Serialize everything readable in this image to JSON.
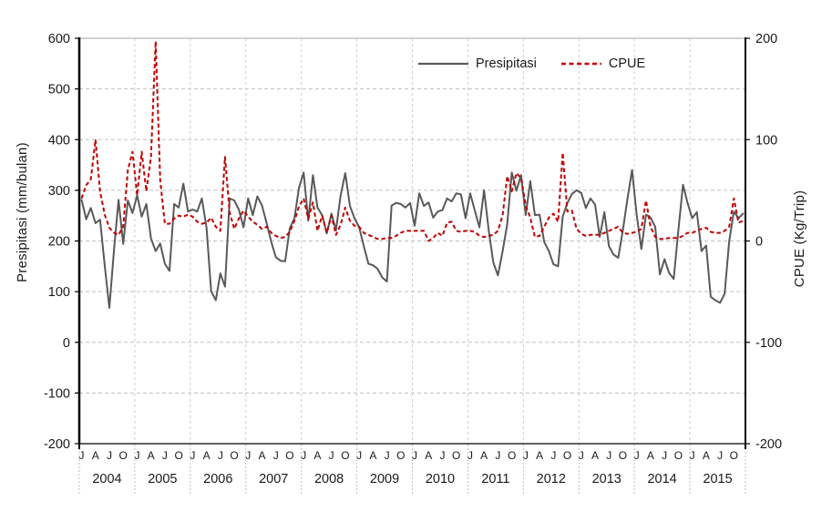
{
  "background": "#ffffff",
  "legend": {
    "presipitasi_label": "Presipitasi",
    "cpue_label": "CPUE"
  },
  "chart_data": {
    "type": "line",
    "title": "",
    "left_axis": {
      "title": "Presipitasi (mm/bulan)",
      "min": -200,
      "max": 600,
      "step": 100,
      "ticks": [
        600,
        500,
        400,
        300,
        200,
        100,
        0,
        -100,
        -200
      ]
    },
    "right_axis": {
      "title": "CPUE (Kg/Trip)",
      "min": -200,
      "max": 200,
      "step": 100,
      "ticks": [
        200,
        100,
        0,
        -100,
        -200
      ]
    },
    "x_axis": {
      "years": [
        "2004",
        "2005",
        "2006",
        "2007",
        "2008",
        "2009",
        "2010",
        "2011",
        "2012",
        "2013",
        "2014",
        "2015"
      ],
      "month_letters": [
        "J",
        "A",
        "J",
        "O"
      ],
      "month_letter_positions": [
        0,
        3,
        6,
        9
      ],
      "months_per_year": 12
    },
    "grid": {
      "horizontal": true,
      "vertical_year_lines": true,
      "h_color": "#BFBFBF",
      "v_color": "#CFCFCF",
      "top_border_color": "#A6A6A6"
    },
    "legend_position": "top-center",
    "series": [
      {
        "name": "Presipitasi",
        "axis": "left",
        "color": "#595959",
        "style": "solid",
        "values": [
          281,
          243,
          265,
          235,
          242,
          152,
          68,
          182,
          281,
          194,
          280,
          255,
          290,
          248,
          273,
          205,
          180,
          195,
          155,
          141,
          273,
          266,
          313,
          258,
          262,
          258,
          284,
          227,
          101,
          83,
          136,
          110,
          284,
          280,
          262,
          227,
          284,
          251,
          288,
          270,
          235,
          198,
          168,
          161,
          160,
          225,
          245,
          305,
          335,
          240,
          330,
          266,
          251,
          215,
          254,
          221,
          290,
          334,
          269,
          245,
          227,
          190,
          155,
          152,
          145,
          128,
          120,
          270,
          275,
          273,
          266,
          275,
          230,
          294,
          269,
          276,
          246,
          258,
          261,
          284,
          278,
          294,
          292,
          245,
          294,
          260,
          227,
          300,
          221,
          158,
          132,
          179,
          233,
          335,
          299,
          330,
          251,
          318,
          251,
          252,
          198,
          180,
          154,
          150,
          248,
          275,
          293,
          300,
          295,
          265,
          284,
          272,
          208,
          257,
          190,
          173,
          167,
          221,
          284,
          340,
          251,
          184,
          252,
          246,
          228,
          134,
          164,
          137,
          125,
          221,
          311,
          275,
          245,
          257,
          180,
          191,
          90,
          83,
          78,
          96,
          200,
          258,
          245,
          254
        ]
      },
      {
        "name": "CPUE",
        "axis": "right",
        "color": "#C00000",
        "style": "dashed",
        "values": [
          42,
          55,
          61,
          100,
          49,
          26,
          13,
          8,
          6,
          14,
          70,
          88,
          45,
          88,
          49,
          83,
          197,
          60,
          17,
          17,
          22,
          25,
          24,
          26,
          24,
          19,
          17,
          18,
          23,
          14,
          10,
          83,
          28,
          12,
          22,
          30,
          24,
          19,
          16,
          12,
          14,
          8,
          5,
          3,
          4,
          9,
          20,
          34,
          42,
          22,
          38,
          10,
          25,
          8,
          25,
          6,
          16,
          33,
          20,
          15,
          14,
          8,
          6,
          4,
          2,
          2,
          3,
          3,
          5,
          8,
          10,
          10,
          10,
          10,
          10,
          0,
          3,
          8,
          5,
          18,
          19,
          10,
          9,
          10,
          10,
          9,
          5,
          4,
          5,
          6,
          10,
          25,
          64,
          49,
          67,
          62,
          35,
          23,
          4,
          5,
          14,
          23,
          27,
          19,
          87,
          29,
          30,
          12,
          7,
          5,
          6,
          6,
          6,
          8,
          10,
          12,
          14,
          8,
          7,
          8,
          9,
          12,
          40,
          14,
          4,
          2,
          2,
          3,
          3,
          3,
          5,
          8,
          8,
          10,
          12,
          13,
          9,
          8,
          8,
          10,
          14,
          42,
          18,
          20
        ]
      }
    ]
  }
}
